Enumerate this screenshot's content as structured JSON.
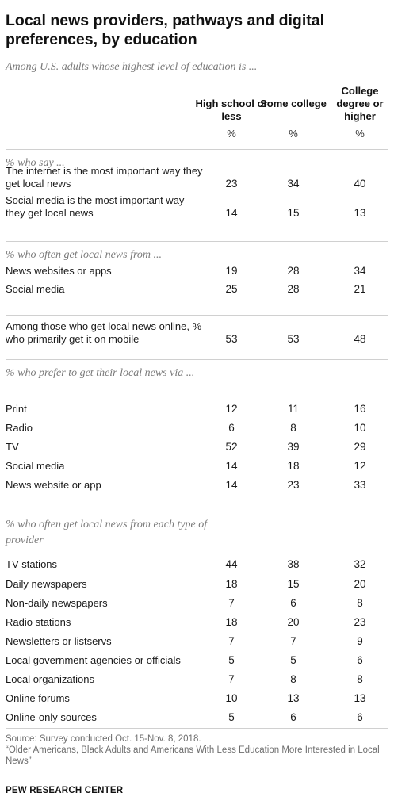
{
  "title": "Local news providers, pathways and digital preferences, by education",
  "subtitle": "Among U.S. adults whose highest level of education is ...",
  "columns": [
    "High school or less",
    "Some college",
    "College degree or higher"
  ],
  "unit_label": "%",
  "chart_data": {
    "type": "table",
    "title": "Local news providers, pathways and digital preferences, by education",
    "subtitle": "Among U.S. adults whose highest level of education is ...",
    "columns": [
      "High school or less",
      "Some college",
      "College degree or higher"
    ],
    "unit": "%",
    "sections": [
      {
        "label": "% who say ...",
        "rows": [
          {
            "label": "The internet is the most important way they get local news",
            "values": [
              23,
              34,
              40
            ]
          },
          {
            "label": "Social media is the most important way they get local news",
            "values": [
              14,
              15,
              13
            ]
          }
        ]
      },
      {
        "label": "% who often get local news from ...",
        "rows": [
          {
            "label": "News websites or apps",
            "values": [
              19,
              28,
              34
            ]
          },
          {
            "label": "Social media",
            "values": [
              25,
              28,
              21
            ]
          }
        ]
      },
      {
        "label": "",
        "rows": [
          {
            "label": "Among those who get local news online, % who primarily get it on mobile",
            "values": [
              53,
              53,
              48
            ]
          }
        ]
      },
      {
        "label": "% who prefer to get their local news via ...",
        "rows": [
          {
            "label": "Print",
            "values": [
              12,
              11,
              16
            ]
          },
          {
            "label": "Radio",
            "values": [
              6,
              8,
              10
            ]
          },
          {
            "label": "TV",
            "values": [
              52,
              39,
              29
            ]
          },
          {
            "label": "Social media",
            "values": [
              14,
              18,
              12
            ]
          },
          {
            "label": "News website or app",
            "values": [
              14,
              23,
              33
            ]
          }
        ]
      },
      {
        "label": "% who often get local news from each type of provider",
        "rows": [
          {
            "label": "TV stations",
            "values": [
              44,
              38,
              32
            ]
          },
          {
            "label": "Daily newspapers",
            "values": [
              18,
              15,
              20
            ]
          },
          {
            "label": "Non-daily newspapers",
            "values": [
              7,
              6,
              8
            ]
          },
          {
            "label": "Radio stations",
            "values": [
              18,
              20,
              23
            ]
          },
          {
            "label": "Newsletters or listservs",
            "values": [
              7,
              7,
              9
            ]
          },
          {
            "label": "Local government agencies or officials",
            "values": [
              5,
              5,
              6
            ]
          },
          {
            "label": "Local organizations",
            "values": [
              7,
              8,
              8
            ]
          },
          {
            "label": "Online forums",
            "values": [
              10,
              13,
              13
            ]
          },
          {
            "label": "Online-only sources",
            "values": [
              5,
              6,
              6
            ]
          }
        ]
      }
    ]
  },
  "source": "Source: Survey conducted Oct. 15-Nov. 8, 2018.\n“Older Americans, Black Adults and Americans With Less Education More Interested in Local News”",
  "footer": "PEW RESEARCH CENTER"
}
